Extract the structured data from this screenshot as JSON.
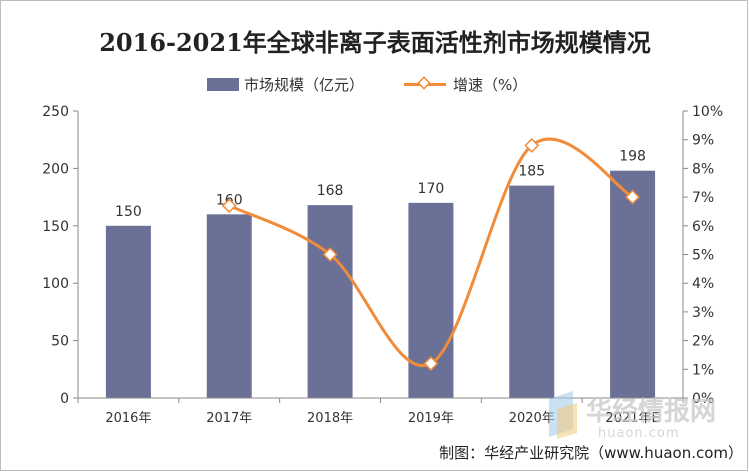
{
  "chart_data": {
    "type": "bar",
    "title": "2016-2021年全球非离子表面活性剂市场规模情况",
    "categories": [
      "2016年",
      "2017年",
      "2018年",
      "2019年",
      "2020年",
      "2021年E"
    ],
    "series": [
      {
        "name": "市场规模（亿元）",
        "type": "bar",
        "axis": "left",
        "values": [
          150,
          160,
          168,
          170,
          185,
          198
        ],
        "color": "#6b7196"
      },
      {
        "name": "增速（%）",
        "type": "line",
        "axis": "right",
        "values": [
          null,
          6.7,
          5.0,
          1.2,
          8.8,
          7.0
        ],
        "color": "#f08c3a"
      }
    ],
    "y_left": {
      "min": 0,
      "max": 250,
      "ticks": [
        "0",
        "50",
        "100",
        "150",
        "200",
        "250"
      ]
    },
    "y_right": {
      "min": 0,
      "max": 10,
      "ticks": [
        "0%",
        "1%",
        "2%",
        "3%",
        "4%",
        "5%",
        "6%",
        "7%",
        "8%",
        "9%",
        "10%"
      ]
    },
    "data_labels": [
      "150",
      "160",
      "168",
      "170",
      "185",
      "198"
    ],
    "legend_position": "top",
    "grid": false
  },
  "source": "制图：华经产业研究院（www.huaon.com）",
  "watermark": {
    "cn": "华经情报网",
    "en": "huaon.com"
  }
}
